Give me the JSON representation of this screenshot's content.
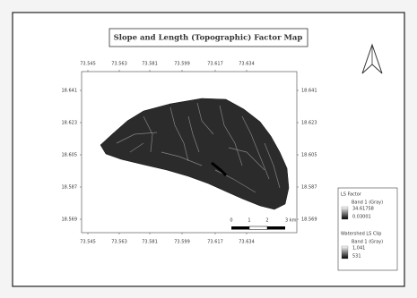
{
  "title": "Slope and Length (Topographic) Factor Map",
  "x_labels": [
    "73.545",
    "73.563",
    "73.581",
    "73.599",
    "73.617",
    "73.634"
  ],
  "y_labels": [
    "18.641",
    "18.623",
    "18.605",
    "18.587",
    "18.569"
  ],
  "scale_bar": {
    "labels": [
      "0",
      "1",
      "2",
      "3 km"
    ]
  },
  "legend": [
    {
      "layer": "LS Factor",
      "band": "Band 1 (Gray)",
      "max": "34.61758",
      "min": "0.03001"
    },
    {
      "layer": "Watershed LS Clip",
      "band": "Band 1 (Gray)",
      "max": "1,041",
      "min": "531"
    }
  ]
}
